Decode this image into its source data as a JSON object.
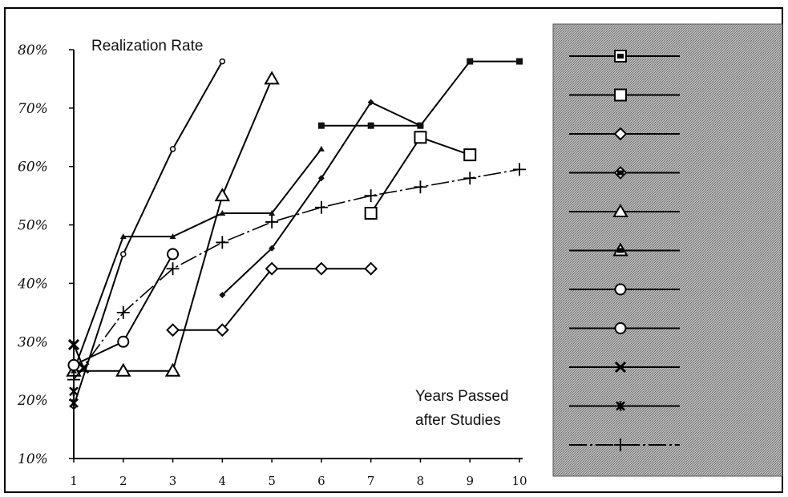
{
  "chart_data": {
    "type": "line",
    "title": "Realization Rate",
    "xlabel_line1": "Years Passed",
    "xlabel_line2": "after Studies",
    "ylabel": "",
    "x_ticks": [
      1,
      2,
      3,
      4,
      5,
      6,
      7,
      8,
      9,
      10
    ],
    "y_ticks": [
      "10%",
      "20%",
      "30%",
      "40%",
      "50%",
      "60%",
      "70%",
      "80%"
    ],
    "xlim": [
      1,
      10
    ],
    "ylim": [
      10,
      80
    ],
    "grid": false,
    "legend_position": "right",
    "legend_background": "#9a9a9a",
    "series": [
      {
        "marker": "small-square-filled",
        "style": "solid",
        "points": [
          [
            6,
            67
          ],
          [
            7,
            67
          ],
          [
            8,
            67
          ],
          [
            9,
            78
          ],
          [
            10,
            78
          ]
        ]
      },
      {
        "marker": "square-open",
        "style": "solid",
        "points": [
          [
            7,
            52
          ],
          [
            8,
            65
          ],
          [
            9,
            62
          ]
        ]
      },
      {
        "marker": "diamond-open",
        "style": "solid",
        "points": [
          [
            3,
            32
          ],
          [
            4,
            32
          ],
          [
            5,
            42.5
          ],
          [
            6,
            42.5
          ],
          [
            7,
            42.5
          ]
        ]
      },
      {
        "marker": "diamond-filled",
        "style": "solid",
        "points": [
          [
            4,
            38
          ],
          [
            5,
            46
          ],
          [
            6,
            58
          ],
          [
            7,
            71
          ],
          [
            8,
            67
          ]
        ]
      },
      {
        "marker": "triangle-open",
        "style": "solid",
        "points": [
          [
            1,
            25
          ],
          [
            2,
            25
          ],
          [
            3,
            25
          ],
          [
            4,
            55
          ],
          [
            5,
            75
          ]
        ]
      },
      {
        "marker": "triangle-filled",
        "style": "solid",
        "points": [
          [
            1,
            25
          ],
          [
            2,
            48
          ],
          [
            3,
            48
          ],
          [
            4,
            52
          ],
          [
            5,
            52
          ],
          [
            6,
            63
          ]
        ]
      },
      {
        "marker": "circle-small",
        "style": "solid",
        "points": [
          [
            1,
            19
          ],
          [
            2,
            45
          ],
          [
            3,
            63
          ],
          [
            4,
            78
          ]
        ]
      },
      {
        "marker": "circle-open",
        "style": "solid",
        "points": [
          [
            1,
            26
          ],
          [
            2,
            30
          ],
          [
            3,
            45
          ]
        ]
      },
      {
        "marker": "x-box",
        "style": "solid",
        "points": [
          [
            1,
            29.5
          ],
          [
            1.2,
            25.5
          ]
        ]
      },
      {
        "marker": "x-box-filled",
        "style": "solid",
        "points": [
          [
            1,
            21.5
          ],
          [
            1,
            19.5
          ]
        ]
      },
      {
        "marker": "plus",
        "style": "dashed",
        "points": [
          [
            1,
            23.5
          ],
          [
            2,
            35
          ],
          [
            3,
            42.5
          ],
          [
            4,
            47
          ],
          [
            5,
            50.5
          ],
          [
            6,
            53
          ],
          [
            7,
            55
          ],
          [
            8,
            56.5
          ],
          [
            9,
            58
          ],
          [
            10,
            59.5
          ]
        ]
      }
    ]
  }
}
